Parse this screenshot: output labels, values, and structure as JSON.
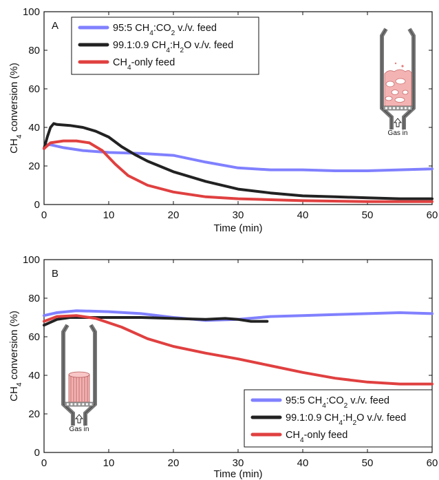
{
  "chart_data": [
    {
      "panel": "A",
      "type": "line",
      "title": "",
      "xlabel": "Time (min)",
      "ylabel": "CH4 conversion (%)",
      "xlim": [
        0,
        60
      ],
      "ylim": [
        0,
        100
      ],
      "xticks": [
        0,
        10,
        20,
        30,
        40,
        50,
        60
      ],
      "yticks": [
        0,
        20,
        40,
        60,
        80,
        100
      ],
      "grid": false,
      "legend_position": "top-left",
      "inset_label": "Gas in",
      "inset_type": "fluidized-bed",
      "series": [
        {
          "name": "95:5 CH4:CO2 v./v. feed",
          "color": "#8080ff",
          "points": [
            [
              0,
              29
            ],
            [
              0.5,
              31
            ],
            [
              1,
              31
            ],
            [
              3,
              29.5
            ],
            [
              6,
              28
            ],
            [
              10,
              27
            ],
            [
              15,
              26.5
            ],
            [
              20,
              25.5
            ],
            [
              25,
              22
            ],
            [
              30,
              19
            ],
            [
              35,
              18
            ],
            [
              40,
              18
            ],
            [
              45,
              17.5
            ],
            [
              50,
              17.5
            ],
            [
              55,
              18
            ],
            [
              60,
              18.5
            ]
          ]
        },
        {
          "name": "99.1:0.9 CH4:H2O v./v. feed",
          "color": "#222222",
          "points": [
            [
              0,
              29
            ],
            [
              0.5,
              35
            ],
            [
              1,
              40
            ],
            [
              1.5,
              42
            ],
            [
              2,
              41.5
            ],
            [
              4,
              41
            ],
            [
              6,
              40
            ],
            [
              8,
              38
            ],
            [
              10,
              35
            ],
            [
              12,
              30
            ],
            [
              14,
              26
            ],
            [
              16,
              22.5
            ],
            [
              20,
              17
            ],
            [
              25,
              12
            ],
            [
              30,
              8
            ],
            [
              35,
              6
            ],
            [
              40,
              4.5
            ],
            [
              45,
              4
            ],
            [
              50,
              3.5
            ],
            [
              55,
              3
            ],
            [
              60,
              3
            ]
          ]
        },
        {
          "name": "CH4-only feed",
          "color": "#e04040",
          "points": [
            [
              0,
              29
            ],
            [
              1,
              32
            ],
            [
              3,
              33
            ],
            [
              5,
              33
            ],
            [
              7,
              32
            ],
            [
              9,
              28
            ],
            [
              11,
              21
            ],
            [
              13,
              15
            ],
            [
              16,
              10
            ],
            [
              20,
              6.5
            ],
            [
              25,
              4
            ],
            [
              30,
              3
            ],
            [
              35,
              2.5
            ],
            [
              40,
              2
            ],
            [
              50,
              1.5
            ],
            [
              60,
              1.5
            ]
          ]
        }
      ]
    },
    {
      "panel": "B",
      "type": "line",
      "title": "",
      "xlabel": "Time (min)",
      "ylabel": "CH4 conversion (%)",
      "xlim": [
        0,
        60
      ],
      "ylim": [
        0,
        100
      ],
      "xticks": [
        0,
        10,
        20,
        30,
        40,
        50,
        60
      ],
      "yticks": [
        0,
        20,
        40,
        60,
        80,
        100
      ],
      "grid": false,
      "legend_position": "bottom-right",
      "inset_label": "Gas in",
      "inset_type": "monolith",
      "series": [
        {
          "name": "95:5 CH4:CO2 v./v. feed",
          "color": "#8080ff",
          "points": [
            [
              0,
              71
            ],
            [
              2,
              72.5
            ],
            [
              5,
              73.5
            ],
            [
              10,
              73
            ],
            [
              15,
              72
            ],
            [
              20,
              70
            ],
            [
              25,
              68.5
            ],
            [
              30,
              69
            ],
            [
              35,
              70.5
            ],
            [
              40,
              71
            ],
            [
              45,
              71.5
            ],
            [
              50,
              72
            ],
            [
              55,
              72.5
            ],
            [
              60,
              72
            ]
          ]
        },
        {
          "name": "99.1:0.9 CH4:H2O v./v. feed",
          "color": "#222222",
          "points": [
            [
              0,
              66
            ],
            [
              2,
              69
            ],
            [
              4,
              70
            ],
            [
              6,
              70
            ],
            [
              10,
              70
            ],
            [
              15,
              70
            ],
            [
              20,
              69.5
            ],
            [
              25,
              69
            ],
            [
              28,
              69.5
            ],
            [
              30,
              69
            ],
            [
              32,
              68
            ],
            [
              34.5,
              68
            ]
          ]
        },
        {
          "name": "CH4-only feed",
          "color": "#e04040",
          "points": [
            [
              0,
              68
            ],
            [
              2,
              70.5
            ],
            [
              5,
              71
            ],
            [
              8,
              69.5
            ],
            [
              12,
              65
            ],
            [
              16,
              59
            ],
            [
              20,
              55
            ],
            [
              25,
              51.5
            ],
            [
              30,
              48.5
            ],
            [
              35,
              45
            ],
            [
              40,
              41.5
            ],
            [
              45,
              38.5
            ],
            [
              50,
              36.5
            ],
            [
              55,
              35.5
            ],
            [
              60,
              35.5
            ]
          ]
        }
      ]
    }
  ]
}
